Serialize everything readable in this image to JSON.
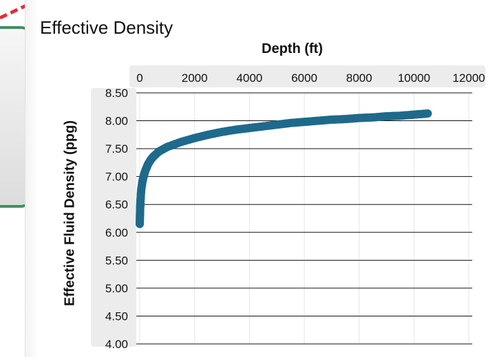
{
  "chart_data": {
    "type": "scatter",
    "title": "Effective Density",
    "xlabel": "Depth (ft)",
    "ylabel": "Effective Fluid Density (ppg)",
    "x_axis_position": "top",
    "xlim": [
      0,
      12000
    ],
    "ylim": [
      4.0,
      8.5
    ],
    "x_ticks": [
      "0",
      "2000",
      "4000",
      "6000",
      "8000",
      "10000",
      "12000"
    ],
    "y_ticks": [
      "8.50",
      "8.00",
      "7.50",
      "7.00",
      "6.50",
      "6.00",
      "5.50",
      "5.00",
      "4.50",
      "4.00"
    ],
    "grid": true,
    "series": [
      {
        "color": "#1f6a8c",
        "x": [
          0,
          10,
          25,
          50,
          100,
          150,
          200,
          300,
          400,
          500,
          700,
          1000,
          1500,
          2000,
          2500,
          3000,
          3500,
          4000,
          4500,
          5000,
          5500,
          6000,
          6500,
          7000,
          7500,
          8000,
          8500,
          9000,
          9500,
          10000,
          10500
        ],
        "y": [
          6.15,
          6.35,
          6.55,
          6.75,
          6.92,
          7.02,
          7.1,
          7.22,
          7.3,
          7.36,
          7.45,
          7.53,
          7.62,
          7.69,
          7.75,
          7.8,
          7.84,
          7.87,
          7.9,
          7.93,
          7.96,
          7.98,
          8.0,
          8.02,
          8.03,
          8.05,
          8.06,
          8.08,
          8.09,
          8.11,
          8.13
        ]
      }
    ]
  }
}
